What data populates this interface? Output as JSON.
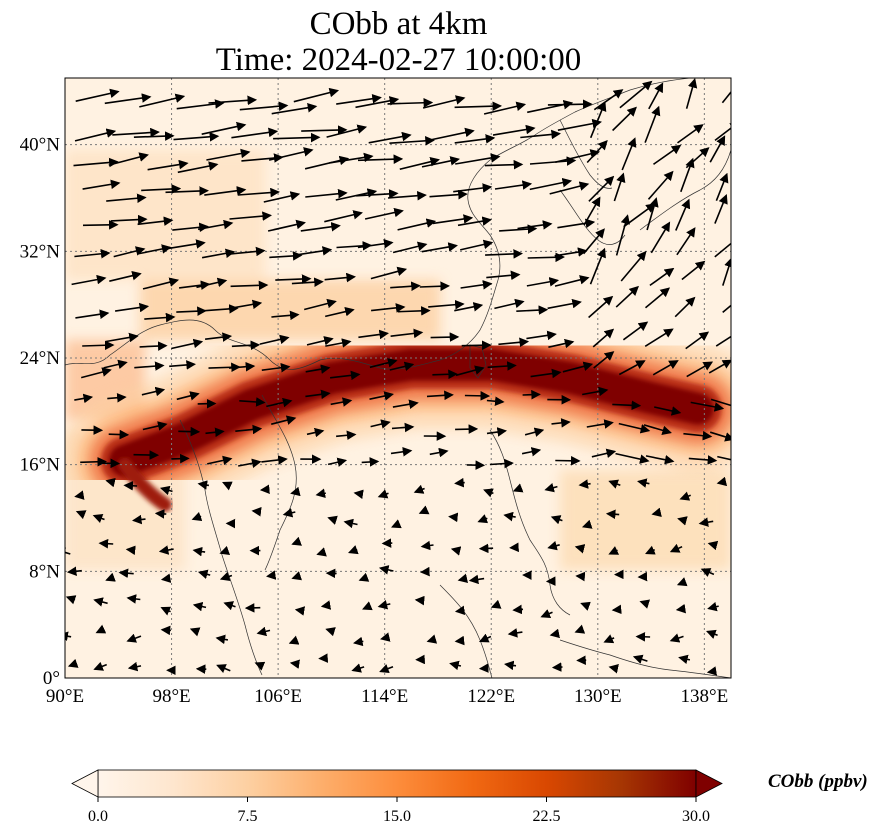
{
  "title": {
    "line1": "CObb at 4km",
    "line2": "Time: 2024-02-27 10:00:00"
  },
  "map": {
    "region": "East and Southeast Asia",
    "projection": "PlateCarree",
    "lon_range": [
      90,
      140
    ],
    "lat_range": [
      0,
      45
    ],
    "gridlines": true,
    "x_ticks": [
      "90°E",
      "98°E",
      "106°E",
      "114°E",
      "122°E",
      "130°E",
      "138°E"
    ],
    "y_ticks": [
      "0°",
      "8°N",
      "16°N",
      "24°N",
      "32°N",
      "40°N"
    ],
    "x_tick_values": [
      90,
      98,
      106,
      114,
      122,
      130,
      138
    ],
    "y_tick_values": [
      0,
      8,
      16,
      24,
      32,
      40
    ],
    "plume": {
      "description_field": "CObb",
      "core_value_ppbv": 30,
      "axis_points": [
        {
          "lon": 94.5,
          "lat": 16.3
        },
        {
          "lon": 99,
          "lat": 18
        },
        {
          "lon": 104,
          "lat": 20.5
        },
        {
          "lon": 110,
          "lat": 22.5
        },
        {
          "lon": 116,
          "lat": 23.5
        },
        {
          "lon": 122,
          "lat": 23.5
        },
        {
          "lon": 128,
          "lat": 22.5
        },
        {
          "lon": 134,
          "lat": 21
        },
        {
          "lon": 137.5,
          "lat": 20.2
        }
      ]
    }
  },
  "colorbar": {
    "title": "CObb (ppbv)",
    "ticks": [
      "0.0",
      "7.5",
      "15.0",
      "22.5",
      "30.0"
    ],
    "tick_values": [
      0,
      7.5,
      15,
      22.5,
      30
    ],
    "range": [
      0,
      30
    ],
    "colors": [
      "#fff5eb",
      "#fee6ce",
      "#fdd0a2",
      "#fdae6b",
      "#fd8d3c",
      "#f16913",
      "#d94801",
      "#a63603",
      "#7f0000"
    ],
    "extend": "both"
  },
  "colors": {
    "arrow": "#000000",
    "coast": "#222222",
    "grid": "#7a7a7a"
  }
}
